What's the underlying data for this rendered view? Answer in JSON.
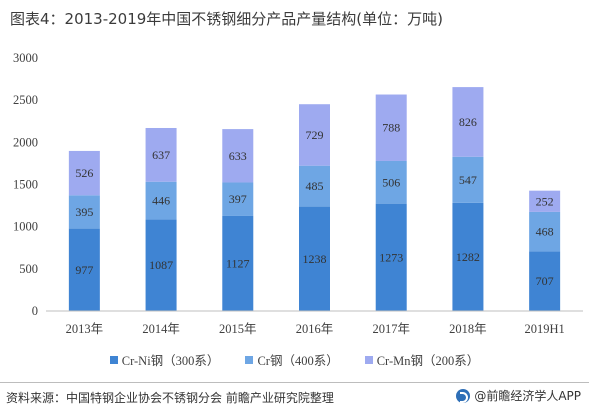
{
  "title": "图表4：2013-2019年中国不锈钢细分产品产量结构(单位：万吨)",
  "source": "资料来源：中国特钢企业协会不锈钢分会 前瞻产业研究院整理",
  "brand": "@前瞻经济学人APP",
  "chart_data": {
    "type": "bar",
    "stacked": true,
    "categories": [
      "2013年",
      "2014年",
      "2015年",
      "2016年",
      "2017年",
      "2018年",
      "2019H1"
    ],
    "series": [
      {
        "name": "Cr-Ni钢（300系）",
        "color": "#3f84d3",
        "values": [
          977,
          1087,
          1127,
          1238,
          1273,
          1282,
          707
        ]
      },
      {
        "name": "Cr钢（400系）",
        "color": "#6ea6e4",
        "values": [
          395,
          446,
          397,
          485,
          506,
          547,
          468
        ]
      },
      {
        "name": "Cr-Mn钢（200系）",
        "color": "#9eaaf0",
        "values": [
          526,
          637,
          633,
          729,
          788,
          826,
          252
        ]
      }
    ],
    "ylim": [
      0,
      3000
    ],
    "yticks": [
      0,
      500,
      1000,
      1500,
      2000,
      2500,
      3000
    ],
    "grid": false,
    "legend_position": "bottom"
  }
}
